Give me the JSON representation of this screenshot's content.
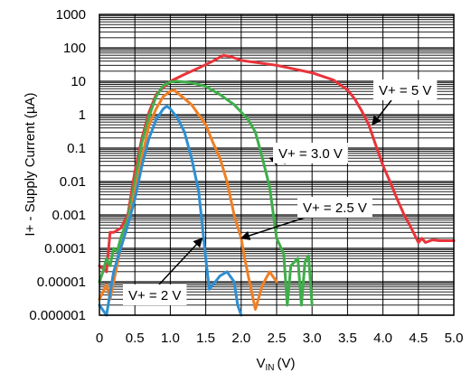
{
  "chart_data": {
    "type": "line",
    "xlabel": {
      "main": "V",
      "sub": "IN",
      "unit": "(V)"
    },
    "ylabel": "I+ - Supply Current (µA)",
    "xlim": [
      0,
      5.0
    ],
    "ylim": [
      1e-06,
      1000
    ],
    "yscale": "log",
    "grid": true,
    "x_ticks": [
      "0",
      "0.5",
      "1.0",
      "1.5",
      "2.0",
      "2.5",
      "3.0",
      "3.5",
      "4.0",
      "4.5",
      "5.0"
    ],
    "y_ticks": [
      "0.000001",
      "0.00001",
      "0.0001",
      "0.001",
      "0.01",
      "0.1",
      "1",
      "10",
      "100",
      "1000"
    ],
    "series": [
      {
        "name": "V+ = 5 V",
        "color": "#e8343a",
        "points": [
          [
            0.0,
            3e-05
          ],
          [
            0.1,
            2e-05
          ],
          [
            0.15,
            0.0003
          ],
          [
            0.2,
            0.0003
          ],
          [
            0.3,
            0.0004
          ],
          [
            0.4,
            0.001
          ],
          [
            0.5,
            0.02
          ],
          [
            0.6,
            0.2
          ],
          [
            0.7,
            1.2
          ],
          [
            0.8,
            4
          ],
          [
            0.9,
            6.5
          ],
          [
            1.0,
            10
          ],
          [
            1.2,
            16
          ],
          [
            1.4,
            25
          ],
          [
            1.6,
            40
          ],
          [
            1.75,
            60
          ],
          [
            1.85,
            55
          ],
          [
            2.0,
            42
          ],
          [
            2.5,
            30
          ],
          [
            3.0,
            18
          ],
          [
            3.3,
            11
          ],
          [
            3.5,
            5.5
          ],
          [
            3.6,
            3
          ],
          [
            3.7,
            1.3
          ],
          [
            3.8,
            0.5
          ],
          [
            3.9,
            0.12
          ],
          [
            4.0,
            0.03
          ],
          [
            4.1,
            0.01
          ],
          [
            4.2,
            0.003
          ],
          [
            4.3,
            0.001
          ],
          [
            4.4,
            0.0004
          ],
          [
            4.5,
            0.00015
          ],
          [
            4.55,
            0.0002
          ],
          [
            4.6,
            0.00015
          ],
          [
            4.7,
            0.00018
          ],
          [
            4.8,
            0.00017
          ],
          [
            5.0,
            0.00017
          ]
        ]
      },
      {
        "name": "V+ = 3.0 V",
        "color": "#3fae49",
        "points": [
          [
            0.0,
            1e-05
          ],
          [
            0.05,
            2e-05
          ],
          [
            0.1,
            5e-05
          ],
          [
            0.15,
            3e-05
          ],
          [
            0.2,
            0.0001
          ],
          [
            0.25,
            8e-05
          ],
          [
            0.3,
            0.0002
          ],
          [
            0.35,
            0.0004
          ],
          [
            0.4,
            0.0008
          ],
          [
            0.5,
            0.01
          ],
          [
            0.6,
            0.15
          ],
          [
            0.7,
            0.9
          ],
          [
            0.8,
            3.5
          ],
          [
            0.9,
            7.5
          ],
          [
            1.0,
            9.5
          ],
          [
            1.1,
            10
          ],
          [
            1.3,
            9
          ],
          [
            1.5,
            7
          ],
          [
            1.7,
            4
          ],
          [
            1.9,
            2
          ],
          [
            2.0,
            1.2
          ],
          [
            2.1,
            0.7
          ],
          [
            2.2,
            0.3
          ],
          [
            2.3,
            0.05
          ],
          [
            2.4,
            0.007
          ],
          [
            2.5,
            0.0002
          ],
          [
            2.6,
            7e-05
          ],
          [
            2.65,
            2e-06
          ],
          [
            2.7,
            3e-05
          ],
          [
            2.8,
            5e-05
          ],
          [
            2.85,
            2e-06
          ],
          [
            2.9,
            4e-05
          ],
          [
            2.95,
            6e-05
          ],
          [
            3.0,
            2e-06
          ]
        ]
      },
      {
        "name": "V+ = 2.5 V",
        "color": "#f07f24",
        "points": [
          [
            0.0,
            3e-06
          ],
          [
            0.1,
            8e-06
          ],
          [
            0.15,
            3e-06
          ],
          [
            0.2,
            1e-05
          ],
          [
            0.3,
            0.0001
          ],
          [
            0.4,
            0.0005
          ],
          [
            0.5,
            0.005
          ],
          [
            0.6,
            0.05
          ],
          [
            0.7,
            0.5
          ],
          [
            0.8,
            1.5
          ],
          [
            0.9,
            3.5
          ],
          [
            1.0,
            5
          ],
          [
            1.05,
            5.5
          ],
          [
            1.1,
            4.5
          ],
          [
            1.2,
            3
          ],
          [
            1.3,
            2
          ],
          [
            1.4,
            1
          ],
          [
            1.5,
            0.5
          ],
          [
            1.6,
            0.15
          ],
          [
            1.7,
            0.05
          ],
          [
            1.8,
            0.01
          ],
          [
            1.9,
            0.001
          ],
          [
            2.0,
            0.0002
          ],
          [
            2.05,
            5e-05
          ],
          [
            2.1,
            1.5e-05
          ],
          [
            2.2,
            1.5e-06
          ],
          [
            2.3,
            8e-06
          ],
          [
            2.4,
            2e-05
          ],
          [
            2.5,
            1e-05
          ]
        ]
      },
      {
        "name": "V+ = 2 V",
        "color": "#2e8fd3",
        "points": [
          [
            0.0,
            2e-06
          ],
          [
            0.1,
            1e-06
          ],
          [
            0.2,
            2e-05
          ],
          [
            0.3,
            0.0001
          ],
          [
            0.4,
            0.0005
          ],
          [
            0.5,
            0.003
          ],
          [
            0.6,
            0.03
          ],
          [
            0.7,
            0.2
          ],
          [
            0.8,
            0.7
          ],
          [
            0.9,
            1.5
          ],
          [
            0.95,
            1.8
          ],
          [
            1.0,
            1.5
          ],
          [
            1.1,
            0.8
          ],
          [
            1.2,
            0.3
          ],
          [
            1.3,
            0.05
          ],
          [
            1.4,
            0.005
          ],
          [
            1.45,
            0.0005
          ],
          [
            1.5,
            5e-05
          ],
          [
            1.55,
            6e-06
          ],
          [
            1.6,
            8e-06
          ],
          [
            1.7,
            1.5e-05
          ],
          [
            1.8,
            2e-05
          ],
          [
            1.9,
            1e-05
          ],
          [
            1.95,
            2e-06
          ],
          [
            2.0,
            1e-06
          ]
        ]
      }
    ],
    "annotations": [
      {
        "series": "V+ = 5 V",
        "label": "V+ = 5 V",
        "target": [
          3.85,
          0.5
        ]
      },
      {
        "series": "V+ = 3.0 V",
        "label": "V+ = 3.0 V",
        "target": [
          2.4,
          0.05
        ]
      },
      {
        "series": "V+ = 2.5 V",
        "label": "V+ = 2.5 V",
        "target": [
          2.0,
          0.0002
        ]
      },
      {
        "series": "V+ = 2 V",
        "label": "V+ = 2 V",
        "target": [
          1.45,
          0.0002
        ]
      }
    ]
  }
}
